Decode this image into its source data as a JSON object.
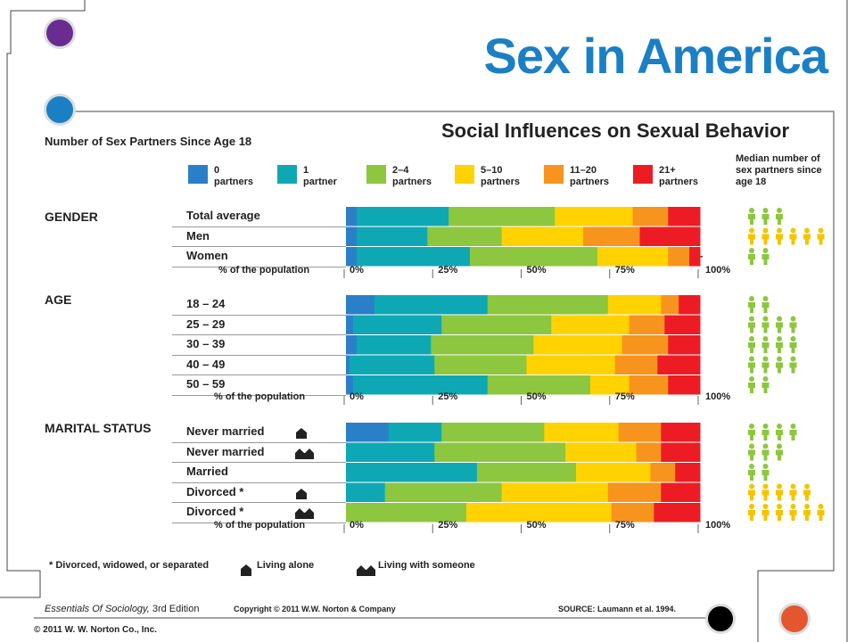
{
  "header": {
    "title": "Sex in America",
    "chart_title": "Social Influences on Sexual Behavior",
    "y_title": "Number of Sex Partners Since Age 18",
    "median_label": "Median number of sex partners since age 18"
  },
  "colors": {
    "title": "#1b7fc4",
    "purple_dot": "#6a2c91",
    "blue_dot": "#1b7fc4",
    "orange_dot": "#e4572e",
    "black_dot": "#000000",
    "person_green": "#8dc63f",
    "person_yellow": "#f5c400"
  },
  "footer": {
    "footnote": "* Divorced, widowed, or separated",
    "living_alone": "Living alone",
    "living_with": "Living with someone",
    "book_title": "Essentials Of Sociology,",
    "book_edition": " 3rd Edition",
    "copyright": "Copyright © 2011 W.W. Norton & Company",
    "source": "SOURCE: Laumann et al. 1994.",
    "publisher": "© 2011 W. W. Norton Co., Inc."
  },
  "axis": {
    "pct_title": "% of the population",
    "ticks": [
      "0%",
      "25%",
      "50%",
      "75%",
      "100%"
    ]
  },
  "chart_data": {
    "type": "bar",
    "orientation": "horizontal-stacked-100",
    "title": "Social Influences on Sexual Behavior",
    "xlabel": "% of the population",
    "xlim": [
      0,
      100
    ],
    "categories_legend": [
      {
        "label_top": "0",
        "label_bottom": "partners",
        "color": "#2a7fc9"
      },
      {
        "label_top": "1",
        "label_bottom": "partner",
        "color": "#0ea8b5"
      },
      {
        "label_top": "2–4",
        "label_bottom": "partners",
        "color": "#8dc63f"
      },
      {
        "label_top": "5–10",
        "label_bottom": "partners",
        "color": "#ffd200"
      },
      {
        "label_top": "11–20",
        "label_bottom": "partners",
        "color": "#f7941d"
      },
      {
        "label_top": "21+",
        "label_bottom": "partners",
        "color": "#ed1c24"
      }
    ],
    "groups": [
      {
        "label": "GENDER",
        "rows": [
          {
            "label": "Total average",
            "values": [
              3,
              26,
              30,
              22,
              10,
              9
            ],
            "median_count": 3,
            "median_color": "green"
          },
          {
            "label": "Men",
            "values": [
              3,
              20,
              21,
              23,
              16,
              17
            ],
            "median_count": 6,
            "median_color": "yellow"
          },
          {
            "label": "Women",
            "values": [
              3,
              32,
              36,
              20,
              6,
              3
            ],
            "median_count": 2,
            "median_color": "green"
          }
        ]
      },
      {
        "label": "AGE",
        "rows": [
          {
            "label": "18 – 24",
            "values": [
              8,
              32,
              34,
              15,
              5,
              6
            ],
            "median_count": 2,
            "median_color": "green"
          },
          {
            "label": "25 – 29",
            "values": [
              2,
              25,
              31,
              22,
              10,
              10
            ],
            "median_count": 4,
            "median_color": "green"
          },
          {
            "label": "30 – 39",
            "values": [
              3,
              21,
              29,
              25,
              13,
              9
            ],
            "median_count": 4,
            "median_color": "green"
          },
          {
            "label": "40 – 49",
            "values": [
              1,
              24,
              26,
              25,
              12,
              12
            ],
            "median_count": 4,
            "median_color": "green"
          },
          {
            "label": "50 – 59",
            "values": [
              2,
              38,
              29,
              11,
              11,
              9
            ],
            "median_count": 2,
            "median_color": "green"
          }
        ]
      },
      {
        "label": "MARITAL STATUS",
        "rows": [
          {
            "label": "Never married",
            "icon": "living-alone",
            "values": [
              12,
              15,
              29,
              21,
              12,
              11
            ],
            "median_count": 4,
            "median_color": "green"
          },
          {
            "label": "Never married",
            "icon": "living-with-someone",
            "values": [
              0,
              25,
              37,
              20,
              7,
              11
            ],
            "median_count": 3,
            "median_color": "green"
          },
          {
            "label": "Married",
            "icon": "",
            "values": [
              0,
              37,
              28,
              21,
              7,
              7
            ],
            "median_count": 2,
            "median_color": "green"
          },
          {
            "label": "Divorced *",
            "icon": "living-alone",
            "values": [
              0,
              11,
              33,
              30,
              15,
              11
            ],
            "median_count": 5,
            "median_color": "yellow"
          },
          {
            "label": "Divorced *",
            "icon": "living-with-someone",
            "values": [
              0,
              0,
              34,
              41,
              12,
              13
            ],
            "median_count": 6,
            "median_color": "yellow"
          }
        ]
      }
    ]
  }
}
